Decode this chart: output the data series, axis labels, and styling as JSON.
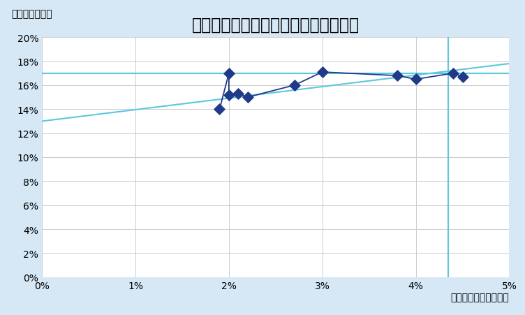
{
  "title": "ケミプロ　研究開発費比率・総利益率",
  "xlabel": "売上高研究開発費比率",
  "ylabel": "売上高総利益率",
  "background_color": "#d6e8f5",
  "plot_bg_color": "#ffffff",
  "xlim": [
    0,
    0.05
  ],
  "ylim": [
    0,
    0.2
  ],
  "xticks": [
    0,
    0.01,
    0.02,
    0.03,
    0.04,
    0.05
  ],
  "yticks": [
    0,
    0.02,
    0.04,
    0.06,
    0.08,
    0.1,
    0.12,
    0.14,
    0.16,
    0.18,
    0.2
  ],
  "scatter_x": [
    0.019,
    0.02,
    0.02,
    0.021,
    0.022,
    0.027,
    0.03,
    0.038,
    0.04,
    0.044,
    0.045
  ],
  "scatter_y": [
    0.14,
    0.17,
    0.152,
    0.153,
    0.15,
    0.16,
    0.171,
    0.168,
    0.165,
    0.17,
    0.167
  ],
  "line_color": "#1f3a8a",
  "marker_color": "#1f3a8a",
  "hline_y": 0.17,
  "hline_color": "#5bc8dc",
  "trend_x": [
    0.0,
    0.05
  ],
  "trend_y": [
    0.13,
    0.178
  ],
  "trend_color": "#5bc8dc",
  "vline_x": 0.0435,
  "vline_color": "#5bc8dc",
  "title_fontsize": 17,
  "axis_label_fontsize": 10,
  "tick_fontsize": 10,
  "marker_size": 60
}
